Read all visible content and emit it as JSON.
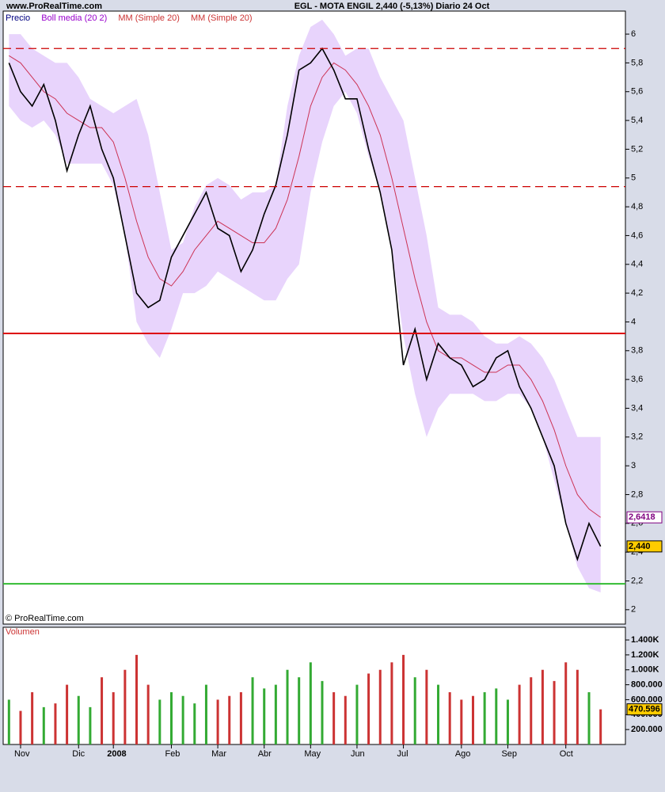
{
  "header": {
    "site": "www.ProRealTime.com",
    "title": "EGL - MOTA ENGIL    2,440 (-5,13%)    Diario  24 Oct",
    "copyright": "© ProRealTime.com"
  },
  "chart_data": [
    {
      "type": "line",
      "legend": [
        {
          "name": "Precio",
          "color": "#000080"
        },
        {
          "name": "Boll media (20 2)",
          "color": "#9900cc"
        },
        {
          "name": "MM (Simple 20)",
          "color": "#cc3333"
        },
        {
          "name": "MM (Simple 20)",
          "color": "#cc3333"
        }
      ],
      "categories": [
        null,
        "Nov",
        null,
        null,
        null,
        null,
        "Dic",
        null,
        null,
        "2008",
        null,
        null,
        null,
        null,
        "Feb",
        null,
        null,
        null,
        "Mar",
        null,
        null,
        null,
        "Abr",
        null,
        null,
        null,
        "May",
        null,
        null,
        null,
        "Jun",
        null,
        null,
        null,
        "Jul",
        null,
        null,
        null,
        null,
        "Ago",
        null,
        null,
        null,
        "Sep",
        null,
        null,
        null,
        null,
        "Oct",
        null,
        null,
        null
      ],
      "series": [
        {
          "kind": "band",
          "color": "#e8d4fc",
          "upper": [
            6.0,
            6.0,
            5.9,
            5.85,
            5.8,
            5.8,
            5.7,
            5.55,
            5.5,
            5.45,
            5.5,
            5.55,
            5.3,
            4.9,
            4.5,
            4.55,
            4.8,
            4.95,
            5.0,
            4.95,
            4.85,
            4.9,
            4.9,
            4.95,
            5.5,
            5.85,
            6.05,
            6.1,
            6.0,
            5.85,
            5.9,
            5.9,
            5.7,
            5.55,
            5.4,
            5.0,
            4.6,
            4.1,
            4.05,
            4.05,
            4.0,
            3.9,
            3.85,
            3.85,
            3.9,
            3.85,
            3.75,
            3.6,
            3.4,
            3.2,
            3.2,
            3.2
          ],
          "lower": [
            5.5,
            5.4,
            5.35,
            5.4,
            5.3,
            5.1,
            5.1,
            5.1,
            5.1,
            4.95,
            4.6,
            4.0,
            3.85,
            3.75,
            3.95,
            4.2,
            4.2,
            4.25,
            4.35,
            4.3,
            4.25,
            4.2,
            4.15,
            4.15,
            4.3,
            4.4,
            4.9,
            5.25,
            5.5,
            5.6,
            5.45,
            5.15,
            4.9,
            4.5,
            3.9,
            3.5,
            3.2,
            3.4,
            3.5,
            3.5,
            3.5,
            3.45,
            3.45,
            3.5,
            3.5,
            3.4,
            3.2,
            2.9,
            2.6,
            2.3,
            2.15,
            2.12
          ]
        },
        {
          "kind": "line",
          "color": "#cc3355",
          "values": [
            5.85,
            5.8,
            5.7,
            5.6,
            5.55,
            5.45,
            5.4,
            5.35,
            5.35,
            5.25,
            5.0,
            4.7,
            4.45,
            4.3,
            4.25,
            4.35,
            4.5,
            4.6,
            4.7,
            4.65,
            4.6,
            4.55,
            4.55,
            4.65,
            4.85,
            5.15,
            5.5,
            5.7,
            5.8,
            5.75,
            5.65,
            5.5,
            5.3,
            5.0,
            4.65,
            4.3,
            4.0,
            3.8,
            3.75,
            3.75,
            3.7,
            3.65,
            3.65,
            3.7,
            3.7,
            3.6,
            3.45,
            3.25,
            3.0,
            2.8,
            2.7,
            2.6418
          ]
        },
        {
          "kind": "line",
          "color": "#000000",
          "values": [
            5.8,
            5.6,
            5.5,
            5.65,
            5.4,
            5.05,
            5.3,
            5.5,
            5.2,
            5.0,
            4.6,
            4.2,
            4.1,
            4.15,
            4.45,
            4.6,
            4.75,
            4.9,
            4.65,
            4.6,
            4.35,
            4.5,
            4.75,
            4.95,
            5.3,
            5.75,
            5.8,
            5.9,
            5.75,
            5.55,
            5.55,
            5.2,
            4.9,
            4.5,
            3.7,
            3.95,
            3.6,
            3.85,
            3.75,
            3.7,
            3.55,
            3.6,
            3.75,
            3.8,
            3.55,
            3.4,
            3.2,
            3.0,
            2.6,
            2.35,
            2.6,
            2.44
          ]
        }
      ],
      "levels": [
        {
          "value": 5.9,
          "color": "#cc0000",
          "style": "dashed"
        },
        {
          "value": 4.94,
          "color": "#cc0000",
          "style": "dashed"
        },
        {
          "value": 3.92,
          "color": "#dd0000",
          "style": "solid"
        },
        {
          "value": 2.18,
          "color": "#33bb33",
          "style": "solid"
        }
      ],
      "last_labels": [
        {
          "value": 2.6418,
          "label": "2,6418",
          "color": "#ffffff",
          "border": "#800080",
          "text_color": "#800080"
        },
        {
          "value": 2.44,
          "label": "2,440",
          "color": "#ffcc00",
          "border": "#000000",
          "text_color": "#000000"
        }
      ],
      "ylim": [
        1.9,
        6.16
      ],
      "yticks": [
        2,
        {
          "value": 2.2,
          "label": "2,2"
        },
        {
          "value": 2.4,
          "label": "2,4"
        },
        {
          "value": 2.6,
          "label": "2,6"
        },
        {
          "value": 2.8,
          "label": "2,8"
        },
        3,
        {
          "value": 3.2,
          "label": "3,2"
        },
        {
          "value": 3.4,
          "label": "3,4"
        },
        {
          "value": 3.6,
          "label": "3,6"
        },
        {
          "value": 3.8,
          "label": "3,8"
        },
        4,
        {
          "value": 4.2,
          "label": "4,2"
        },
        {
          "value": 4.4,
          "label": "4,4"
        },
        {
          "value": 4.6,
          "label": "4,6"
        },
        {
          "value": 4.8,
          "label": "4,8"
        },
        5,
        {
          "value": 5.2,
          "label": "5,2"
        },
        {
          "value": 5.4,
          "label": "5,4"
        },
        {
          "value": 5.6,
          "label": "5,6"
        },
        {
          "value": 5.8,
          "label": "5,8"
        },
        6
      ]
    },
    {
      "type": "bar",
      "title": "Volumen",
      "values": [
        600000,
        450000,
        700000,
        500000,
        550000,
        800000,
        650000,
        500000,
        900000,
        700000,
        1000000,
        1200000,
        800000,
        600000,
        700000,
        650000,
        550000,
        800000,
        600000,
        650000,
        700000,
        900000,
        750000,
        800000,
        1000000,
        900000,
        1100000,
        850000,
        700000,
        650000,
        800000,
        950000,
        1000000,
        1100000,
        1200000,
        900000,
        1000000,
        800000,
        700000,
        600000,
        650000,
        700000,
        750000,
        600000,
        800000,
        900000,
        1000000,
        850000,
        1100000,
        1000000,
        700000,
        470596
      ],
      "up_color": "#33aa33",
      "down_color": "#cc3333",
      "last_label": {
        "value": 470596,
        "label": "470.596"
      },
      "ylim": [
        0,
        1570000
      ],
      "yticks": [
        {
          "value": 200000,
          "label": "200.000"
        },
        {
          "value": 400000,
          "label": "400.000"
        },
        {
          "value": 600000,
          "label": "600.000"
        },
        {
          "value": 800000,
          "label": "800.000"
        },
        {
          "value": 1000000,
          "label": "1.000K"
        },
        {
          "value": 1200000,
          "label": "1.200K"
        },
        {
          "value": 1400000,
          "label": "1.400K"
        }
      ]
    }
  ]
}
